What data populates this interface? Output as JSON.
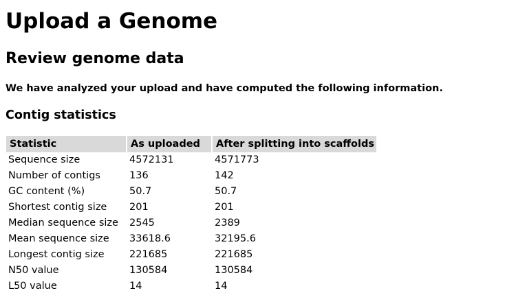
{
  "page": {
    "title": "Upload a Genome",
    "subtitle": "Review genome data",
    "intro": "We have analyzed your upload and have computed the following information.",
    "section_title": "Contig statistics"
  },
  "table": {
    "headers": [
      "Statistic",
      "As uploaded",
      "After splitting into scaffolds"
    ],
    "rows": [
      [
        "Sequence size",
        "4572131",
        "4571773"
      ],
      [
        "Number of contigs",
        "136",
        "142"
      ],
      [
        "GC content (%)",
        "50.7",
        "50.7"
      ],
      [
        "Shortest contig size",
        "201",
        "201"
      ],
      [
        "Median sequence size",
        "2545",
        "2389"
      ],
      [
        "Mean sequence size",
        "33618.6",
        "32195.6"
      ],
      [
        "Longest contig size",
        "221685",
        "221685"
      ],
      [
        "N50 value",
        "130584",
        "130584"
      ],
      [
        "L50 value",
        "14",
        "14"
      ]
    ]
  },
  "colors": {
    "header_background": "#d9d9d9",
    "text": "#000000",
    "page_background": "#ffffff"
  }
}
